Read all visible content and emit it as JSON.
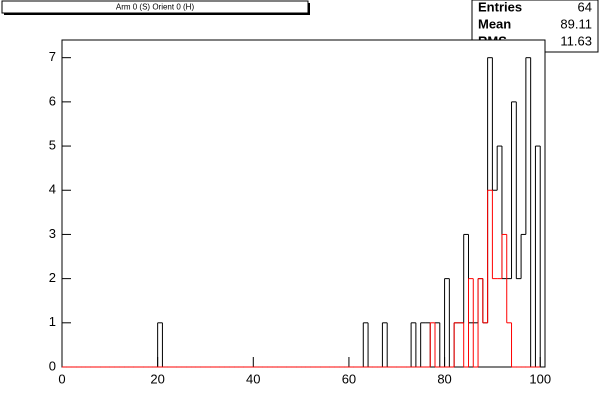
{
  "chart_data": {
    "type": "histogram",
    "title": "Arm 0 (S) Orient 0 (H)",
    "stats": {
      "rows": [
        {
          "label": "Entries",
          "value": "64"
        },
        {
          "label": "Mean",
          "value": "89.11"
        },
        {
          "label": "RMS",
          "value": "11.63"
        }
      ]
    },
    "bins": [
      0,
      1,
      2,
      3,
      4,
      5,
      6,
      7,
      8,
      9,
      10,
      11,
      12,
      13,
      14,
      15,
      16,
      17,
      18,
      19,
      20,
      21,
      22,
      23,
      24,
      25,
      26,
      27,
      28,
      29,
      30,
      31,
      32,
      33,
      34,
      35,
      36,
      37,
      38,
      39,
      40,
      41,
      42,
      43,
      44,
      45,
      46,
      47,
      48,
      49,
      50,
      51,
      52,
      53,
      54,
      55,
      56,
      57,
      58,
      59,
      60,
      61,
      62,
      63,
      64,
      65,
      66,
      67,
      68,
      69,
      70,
      71,
      72,
      73,
      74,
      75,
      76,
      77,
      78,
      79,
      80,
      81,
      82,
      83,
      84,
      85,
      86,
      87,
      88,
      89,
      90,
      91,
      92,
      93,
      94,
      95,
      96,
      97,
      98,
      99,
      100
    ],
    "series": [
      {
        "color": "#000000",
        "values": [
          0,
          0,
          0,
          0,
          0,
          0,
          0,
          0,
          0,
          0,
          0,
          0,
          0,
          0,
          0,
          0,
          0,
          0,
          0,
          0,
          1,
          0,
          0,
          0,
          0,
          0,
          0,
          0,
          0,
          0,
          0,
          0,
          0,
          0,
          0,
          0,
          0,
          0,
          0,
          0,
          0,
          0,
          0,
          0,
          0,
          0,
          0,
          0,
          0,
          0,
          0,
          0,
          0,
          0,
          0,
          0,
          0,
          0,
          0,
          0,
          0,
          0,
          0,
          1,
          0,
          0,
          0,
          1,
          0,
          0,
          0,
          0,
          0,
          1,
          0,
          1,
          1,
          0,
          1,
          0,
          2,
          0,
          1,
          1,
          3,
          1,
          1,
          2,
          1,
          7,
          4,
          5,
          2,
          2,
          6,
          2,
          3,
          7,
          0,
          5
        ]
      },
      {
        "color": "#ff0000",
        "values": [
          0,
          0,
          0,
          0,
          0,
          0,
          0,
          0,
          0,
          0,
          0,
          0,
          0,
          0,
          0,
          0,
          0,
          0,
          0,
          0,
          0,
          0,
          0,
          0,
          0,
          0,
          0,
          0,
          0,
          0,
          0,
          0,
          0,
          0,
          0,
          0,
          0,
          0,
          0,
          0,
          0,
          0,
          0,
          0,
          0,
          0,
          0,
          0,
          0,
          0,
          0,
          0,
          0,
          0,
          0,
          0,
          0,
          0,
          0,
          0,
          0,
          0,
          0,
          0,
          0,
          0,
          0,
          0,
          0,
          0,
          0,
          0,
          0,
          0,
          0,
          0,
          0,
          1,
          0,
          0,
          0,
          0,
          1,
          1,
          0,
          2,
          0,
          2,
          1,
          4,
          2,
          2,
          3,
          1,
          0,
          0,
          0,
          0,
          0,
          0
        ]
      }
    ],
    "xlim": [
      0,
      101
    ],
    "xticks": [
      0,
      20,
      40,
      60,
      80,
      100
    ],
    "ylim": [
      0,
      7.4
    ],
    "yticks": [
      0,
      1,
      2,
      3,
      4,
      5,
      6,
      7
    ]
  }
}
